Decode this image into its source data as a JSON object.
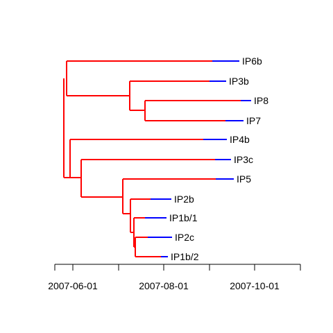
{
  "colors": {
    "internal": "#ff0000",
    "terminal": "#0000ff",
    "axis": "#000000"
  },
  "axis": {
    "tick_labels": [
      "2007-06-01",
      "2007-08-01",
      "2007-10-01"
    ]
  },
  "tips": [
    {
      "label": "IP6b"
    },
    {
      "label": "IP3b"
    },
    {
      "label": "IP8"
    },
    {
      "label": "IP7"
    },
    {
      "label": "IP4b"
    },
    {
      "label": "IP3c"
    },
    {
      "label": "IP5"
    },
    {
      "label": "IP2b"
    },
    {
      "label": "IP1b/1"
    },
    {
      "label": "IP2c"
    },
    {
      "label": "IP1b/2"
    }
  ]
}
